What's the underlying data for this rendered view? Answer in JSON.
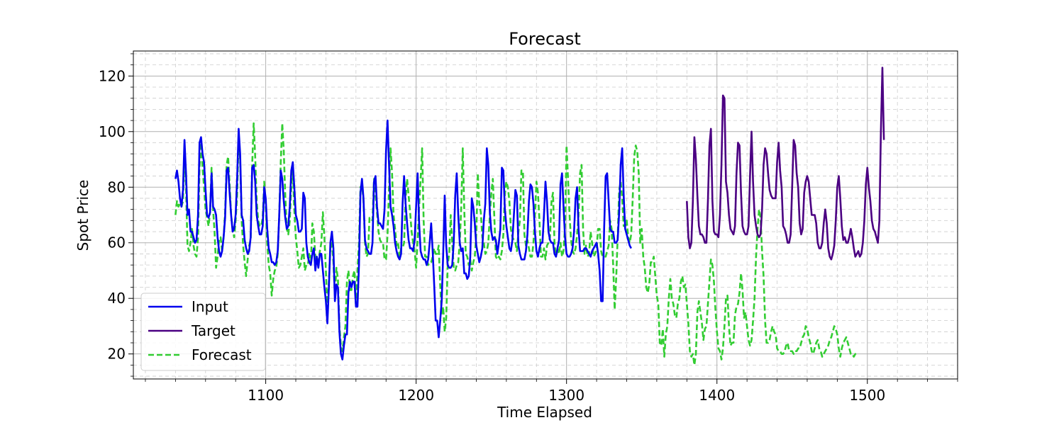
{
  "chart_data": {
    "type": "line",
    "title": "Forecast",
    "xlabel": "Time Elapsed",
    "ylabel": "Spot Price",
    "xlim": [
      1012,
      1560
    ],
    "ylim": [
      11,
      129
    ],
    "x_ticks": [
      1100,
      1200,
      1300,
      1400,
      1500
    ],
    "y_ticks": [
      20,
      40,
      60,
      80,
      100,
      120
    ],
    "grid": "major solid, minor dashed",
    "legend_position": "lower-left",
    "colors": {
      "Input": "#0000ee",
      "Target": "#4b0082",
      "Forecast": "#32cd32"
    },
    "series": [
      {
        "name": "Input",
        "x_start": 1040,
        "x_step": 1,
        "values": [
          83,
          86,
          82,
          76,
          73,
          79,
          97,
          85,
          70,
          72,
          64,
          64,
          62,
          60,
          61,
          70,
          96,
          98,
          92,
          89,
          79,
          70,
          69,
          71,
          85,
          73,
          72,
          70,
          62,
          57,
          55,
          57,
          62,
          69,
          86,
          87,
          78,
          70,
          64,
          65,
          70,
          83,
          101,
          92,
          70,
          68,
          61,
          58,
          56,
          57,
          62,
          87,
          88,
          82,
          70,
          66,
          63,
          63,
          66,
          80,
          76,
          65,
          58,
          56,
          53,
          53,
          52,
          53,
          57,
          70,
          86,
          83,
          75,
          69,
          65,
          66,
          73,
          86,
          89,
          80,
          70,
          68,
          64,
          64,
          65,
          78,
          76,
          60,
          55,
          53,
          52,
          56,
          58,
          50,
          55,
          51,
          56,
          56,
          50,
          44,
          39,
          31,
          44,
          60,
          64,
          58,
          39,
          45,
          44,
          28,
          20,
          18,
          23,
          27,
          27,
          42,
          46,
          44,
          46,
          46,
          37,
          37,
          52,
          78,
          83,
          76,
          61,
          58,
          57,
          56,
          56,
          60,
          82,
          84,
          73,
          67,
          67,
          66,
          65,
          72,
          93,
          104,
          88,
          73,
          70,
          66,
          60,
          57,
          55,
          54,
          56,
          74,
          84,
          74,
          67,
          61,
          58,
          58,
          57,
          61,
          73,
          85,
          67,
          57,
          55,
          54,
          54,
          52,
          54,
          60,
          67,
          57,
          45,
          32,
          32,
          26,
          32,
          39,
          56,
          77,
          59,
          52,
          51,
          51,
          52,
          60,
          77,
          85,
          70,
          60,
          57,
          58,
          49,
          49,
          47,
          48,
          55,
          76,
          73,
          67,
          59,
          56,
          53,
          55,
          58,
          68,
          74,
          94,
          88,
          71,
          64,
          61,
          62,
          61,
          56,
          60,
          65,
          87,
          86,
          72,
          66,
          62,
          58,
          57,
          61,
          70,
          79,
          77,
          59,
          56,
          54,
          54,
          54,
          57,
          63,
          75,
          81,
          80,
          74,
          64,
          57,
          55,
          58,
          60,
          60,
          70,
          82,
          75,
          64,
          61,
          60,
          60,
          56,
          55,
          58,
          61,
          81,
          85,
          73,
          62,
          56,
          55,
          55,
          56,
          58,
          64,
          76,
          80,
          65,
          57,
          57,
          57,
          58,
          58,
          57,
          56,
          55,
          57,
          58,
          59,
          60,
          56,
          50,
          39,
          39,
          65,
          84,
          85,
          75,
          65,
          64,
          64,
          60,
          60,
          61,
          71,
          88,
          94,
          77,
          65,
          63,
          61,
          59,
          58
        ]
      },
      {
        "name": "Target",
        "x_start": 1380,
        "x_step": 1,
        "values": [
          75,
          62,
          58,
          60,
          75,
          98,
          90,
          77,
          66,
          63,
          63,
          62,
          60,
          60,
          75,
          95,
          101,
          75,
          64,
          63,
          63,
          62,
          70,
          88,
          113,
          112,
          82,
          78,
          70,
          65,
          64,
          63,
          66,
          85,
          96,
          95,
          78,
          66,
          64,
          63,
          63,
          66,
          84,
          100,
          82,
          70,
          66,
          63,
          62,
          63,
          72,
          88,
          94,
          92,
          85,
          79,
          77,
          76,
          76,
          76,
          89,
          96,
          86,
          80,
          66,
          65,
          63,
          60,
          60,
          63,
          80,
          97,
          95,
          85,
          80,
          67,
          63,
          65,
          78,
          82,
          84,
          82,
          76,
          70,
          70,
          70,
          67,
          60,
          58,
          58,
          60,
          67,
          72,
          67,
          58,
          55,
          54,
          56,
          59,
          68,
          80,
          84,
          76,
          66,
          61,
          62,
          60,
          60,
          62,
          65,
          62,
          58,
          55,
          56,
          57,
          55,
          56,
          60,
          68,
          81,
          87,
          80,
          75,
          68,
          65,
          64,
          62,
          60,
          68,
          100,
          123,
          97
        ]
      },
      {
        "name": "Forecast",
        "x_start": 1040,
        "x_step": 1,
        "values": [
          70,
          75,
          73,
          74,
          73,
          75,
          93,
          80,
          59,
          57,
          60,
          65,
          59,
          56,
          55,
          62,
          87,
          96,
          87,
          80,
          72,
          69,
          66,
          71,
          87,
          72,
          64,
          51,
          55,
          61,
          62,
          57,
          62,
          71,
          88,
          91,
          81,
          70,
          65,
          62,
          68,
          77,
          98,
          90,
          68,
          59,
          53,
          48,
          54,
          59,
          61,
          88,
          103,
          91,
          75,
          68,
          66,
          66,
          69,
          82,
          73,
          60,
          52,
          49,
          41,
          47,
          50,
          51,
          56,
          70,
          89,
          103,
          93,
          77,
          65,
          63,
          68,
          80,
          86,
          72,
          62,
          57,
          51,
          52,
          55,
          58,
          50,
          52,
          52,
          56,
          52,
          67,
          64,
          55,
          53,
          53,
          57,
          60,
          71,
          62,
          50,
          35,
          46,
          58,
          60,
          53,
          41,
          51,
          47,
          30,
          23,
          21,
          26,
          30,
          46,
          50,
          43,
          43,
          48,
          50,
          37,
          50,
          60,
          80,
          81,
          75,
          60,
          55,
          56,
          69,
          69,
          68,
          83,
          77,
          71,
          64,
          61,
          60,
          60,
          54,
          54,
          63,
          80,
          94,
          85,
          70,
          65,
          59,
          60,
          55,
          58,
          58,
          60,
          76,
          83,
          77,
          71,
          64,
          60,
          57,
          51,
          61,
          73,
          83,
          94,
          68,
          55,
          55,
          52,
          53,
          53,
          55,
          58,
          56,
          56,
          59,
          45,
          34,
          37,
          28,
          33,
          52,
          56,
          70,
          60,
          51,
          50,
          52,
          53,
          60,
          73,
          94,
          72,
          56,
          55,
          52,
          54,
          50,
          53,
          55,
          63,
          85,
          74,
          71,
          62,
          60,
          56,
          57,
          60,
          70,
          78,
          83,
          69,
          55,
          54,
          55,
          54,
          57,
          63,
          78,
          82,
          80,
          75,
          65,
          62,
          61,
          60,
          57,
          64,
          68,
          86,
          86,
          63,
          59,
          61,
          58,
          55,
          55,
          60,
          70,
          82,
          78,
          68,
          55,
          55,
          58,
          54,
          59,
          60,
          62,
          75,
          78,
          60,
          55,
          58,
          56,
          60,
          55,
          57,
          66,
          95,
          83,
          70,
          61,
          57,
          56,
          58,
          63,
          70,
          85,
          88,
          65,
          56,
          59,
          55,
          56,
          64,
          60,
          55,
          56,
          58,
          65,
          65,
          57,
          55,
          55,
          55,
          57,
          59,
          68,
          65,
          52,
          36,
          47,
          62,
          79,
          82,
          76,
          66,
          66,
          68,
          62,
          60,
          63,
          76,
          91,
          95,
          93,
          85,
          60,
          65,
          55,
          51,
          44,
          42,
          45,
          53,
          53,
          55,
          48,
          41,
          38,
          24,
          23,
          29,
          19,
          27,
          30,
          40,
          47,
          40,
          38,
          34,
          33,
          38,
          40,
          46,
          48,
          44,
          45,
          38,
          31,
          21,
          19,
          20,
          16,
          20,
          35,
          39,
          35,
          31,
          25,
          29,
          30,
          38,
          46,
          54,
          52,
          46,
          36,
          28,
          22,
          21,
          18,
          22,
          30,
          40,
          41,
          30,
          23,
          24,
          24,
          34,
          37,
          38,
          42,
          49,
          43,
          33,
          35,
          30,
          25,
          23,
          25,
          32,
          40,
          55,
          65,
          72,
          69,
          57,
          48,
          32,
          24,
          24,
          25,
          28,
          30,
          28,
          27,
          22,
          21,
          21,
          20,
          20,
          21,
          23,
          24,
          21,
          21,
          21,
          20,
          21,
          21,
          22,
          22,
          24,
          26,
          27,
          30,
          29,
          26,
          24,
          21,
          20,
          22,
          24,
          25,
          22,
          21,
          19,
          20,
          21,
          22,
          23,
          25,
          26,
          28,
          30,
          29,
          27,
          22,
          19,
          22,
          24,
          25,
          26,
          24,
          22,
          20,
          20,
          19,
          20,
          19
        ]
      }
    ]
  }
}
